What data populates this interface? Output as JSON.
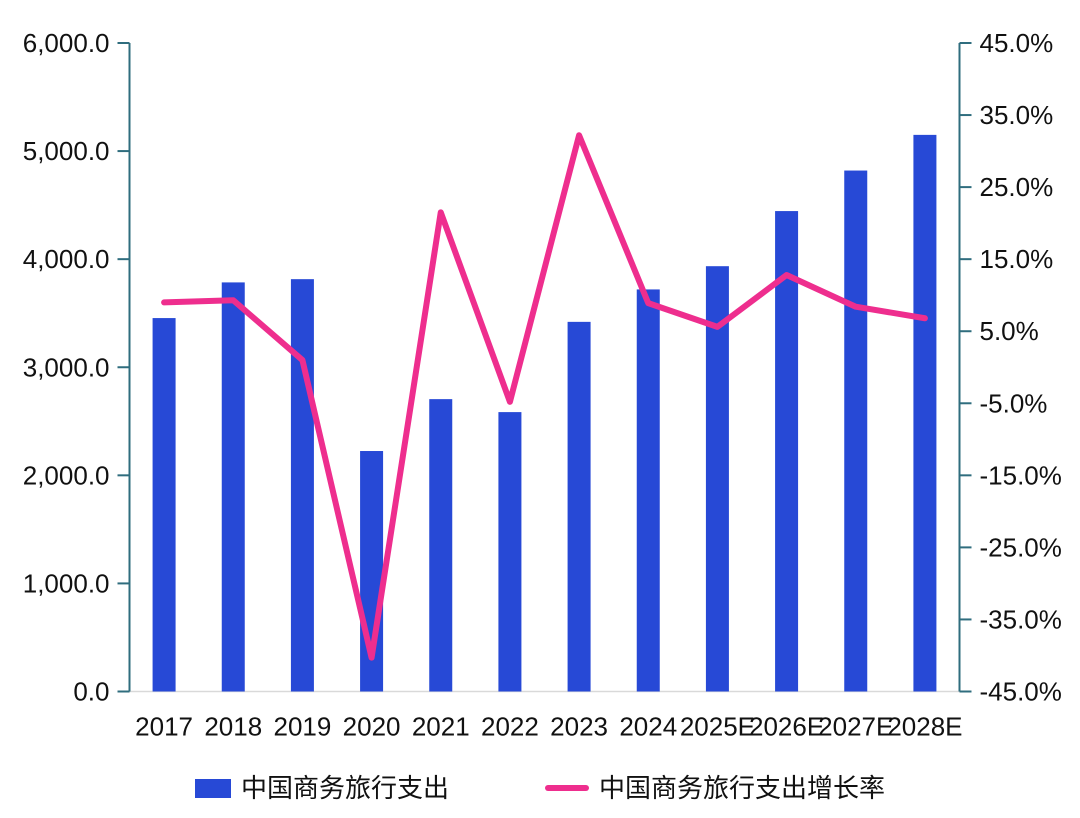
{
  "chart_data": {
    "type": "bar",
    "subtype": "combo-bar-line-dual-axis",
    "title": "",
    "grid": false,
    "legend_position": "bottom",
    "categories": [
      "2017",
      "2018",
      "2019",
      "2020",
      "2021",
      "2022",
      "2023",
      "2024",
      "2025E",
      "2026E",
      "2027E",
      "2028E"
    ],
    "series": [
      {
        "name": "中国商务旅行支出",
        "type": "bar",
        "axis": "left",
        "color": "#2749d6",
        "values": [
          3455,
          3785,
          3815,
          2225,
          2705,
          2585,
          3420,
          3720,
          3935,
          4445,
          4820,
          5150
        ]
      },
      {
        "name": "中国商务旅行支出增长率",
        "type": "line",
        "axis": "right",
        "color": "#ee2e8e",
        "values": [
          9.0,
          9.3,
          1.0,
          -40.3,
          21.5,
          -4.8,
          32.2,
          8.9,
          5.6,
          12.8,
          8.4,
          6.8
        ]
      }
    ],
    "left_axis": {
      "min": 0,
      "max": 6000,
      "step": 1000,
      "tick_labels": [
        "0.0",
        "1,000.0",
        "2,000.0",
        "3,000.0",
        "4,000.0",
        "5,000.0",
        "6,000.0"
      ]
    },
    "right_axis": {
      "min": -45,
      "max": 45,
      "step": 10,
      "tick_labels": [
        "-45.0%",
        "-35.0%",
        "-25.0%",
        "-15.0%",
        "-5.0%",
        "5.0%",
        "15.0%",
        "25.0%",
        "35.0%",
        "45.0%"
      ]
    }
  },
  "legend": {
    "items": [
      {
        "label": "中国商务旅行支出",
        "swatch": "bar",
        "color": "#2749d6"
      },
      {
        "label": "中国商务旅行支出增长率",
        "swatch": "line",
        "color": "#ee2e8e"
      }
    ]
  },
  "colors": {
    "bar": "#2749d6",
    "line": "#ee2e8e",
    "axis": "#2f6d7e",
    "baseline": "#d9d9d9",
    "text": "#111111",
    "background": "#ffffff"
  }
}
